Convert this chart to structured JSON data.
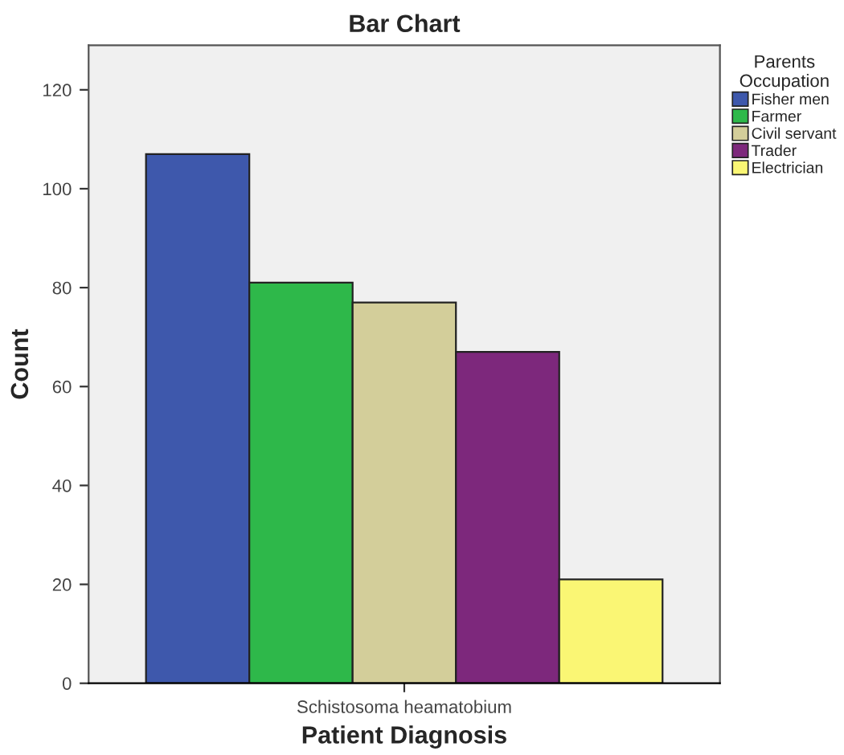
{
  "chart_data": {
    "type": "bar",
    "title": "Bar Chart",
    "xlabel": "Patient Diagnosis",
    "ylabel": "Count",
    "legend_title": "Parents\nOccupation",
    "categories": [
      "Schistosoma heamatobium"
    ],
    "series": [
      {
        "name": "Fisher men",
        "color": "#3e58ac",
        "values": [
          107
        ]
      },
      {
        "name": "Farmer",
        "color": "#2eb84a",
        "values": [
          81
        ]
      },
      {
        "name": "Civil servant",
        "color": "#d3ce9a",
        "values": [
          77
        ]
      },
      {
        "name": "Trader",
        "color": "#7d287c",
        "values": [
          67
        ]
      },
      {
        "name": "Electrician",
        "color": "#faf674",
        "values": [
          21
        ]
      }
    ],
    "ylim": [
      0,
      129
    ],
    "yticks": [
      0,
      20,
      40,
      60,
      80,
      100,
      120
    ],
    "grid": false,
    "legend": "top right"
  }
}
